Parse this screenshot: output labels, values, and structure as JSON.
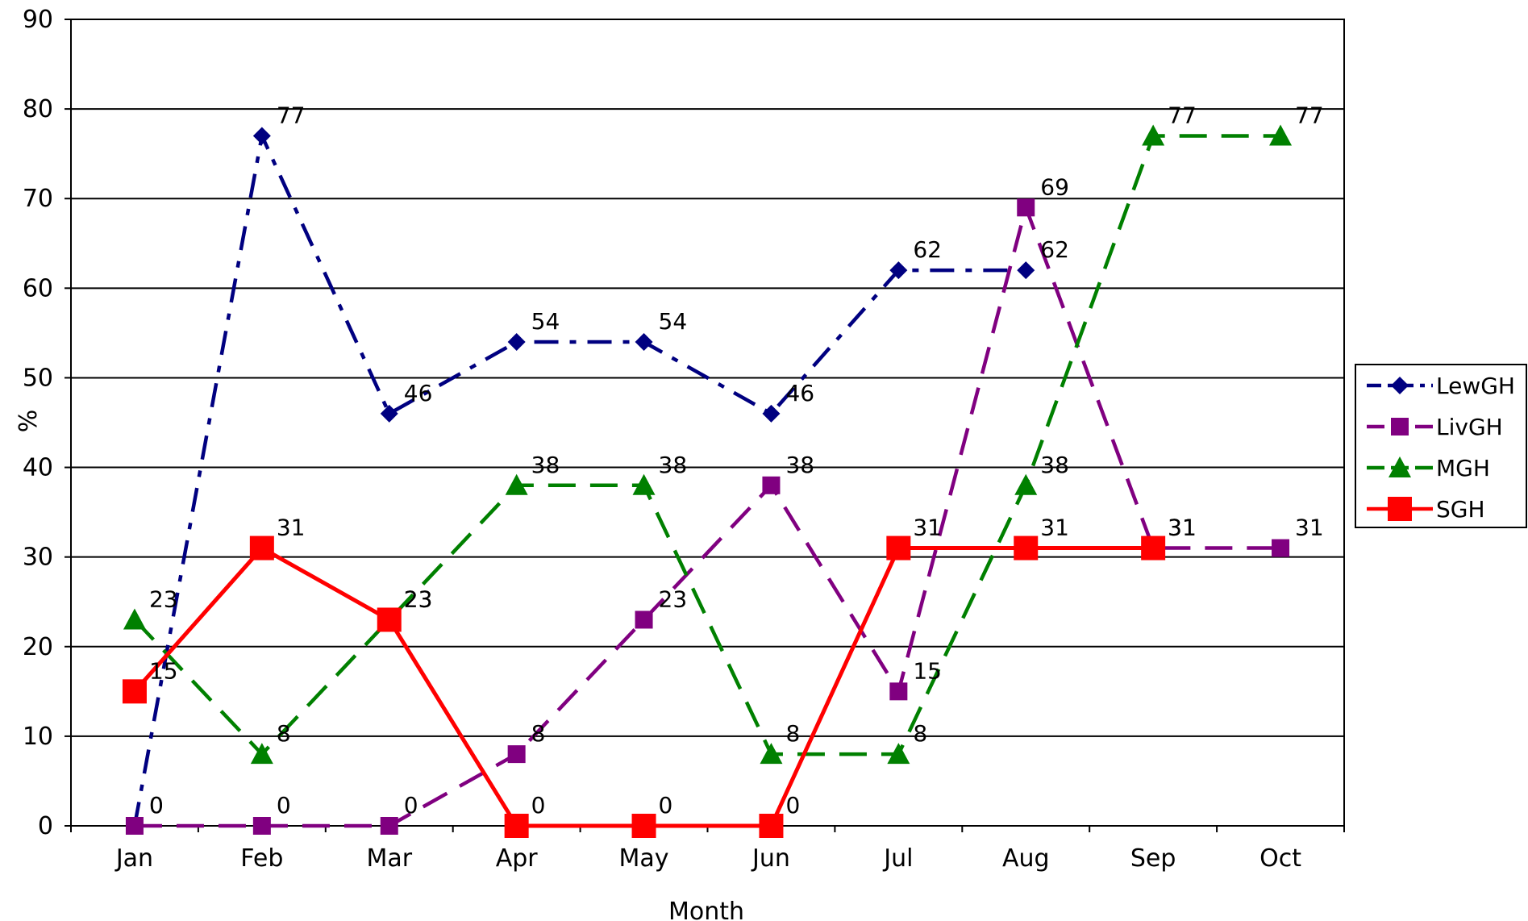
{
  "chart_data": {
    "type": "line",
    "categories": [
      "Jan",
      "Feb",
      "Mar",
      "Apr",
      "May",
      "Jun",
      "Jul",
      "Aug",
      "Sep",
      "Oct"
    ],
    "xlabel": "Month",
    "ylabel": "%",
    "ylim": [
      0,
      90
    ],
    "yticks": [
      0,
      10,
      20,
      30,
      40,
      50,
      60,
      70,
      80,
      90
    ],
    "grid": "horizontal",
    "legend_position": "right",
    "series": [
      {
        "name": "LewGH",
        "color": "#000080",
        "marker": "diamond",
        "line_style": "dash-dot",
        "values": [
          0,
          77,
          46,
          54,
          54,
          46,
          62,
          62,
          null,
          null
        ]
      },
      {
        "name": "LivGH",
        "color": "#800080",
        "marker": "square",
        "line_style": "long-dash",
        "values": [
          0,
          0,
          0,
          8,
          23,
          38,
          15,
          69,
          31,
          31
        ]
      },
      {
        "name": "MGH",
        "color": "#008000",
        "marker": "triangle",
        "line_style": "long-dash",
        "values": [
          23,
          8,
          23,
          38,
          38,
          8,
          8,
          38,
          77,
          77
        ]
      },
      {
        "name": "SGH",
        "color": "#ff0000",
        "marker": "square",
        "line_style": "solid",
        "values": [
          15,
          31,
          23,
          0,
          0,
          0,
          31,
          31,
          31,
          null
        ]
      }
    ]
  }
}
